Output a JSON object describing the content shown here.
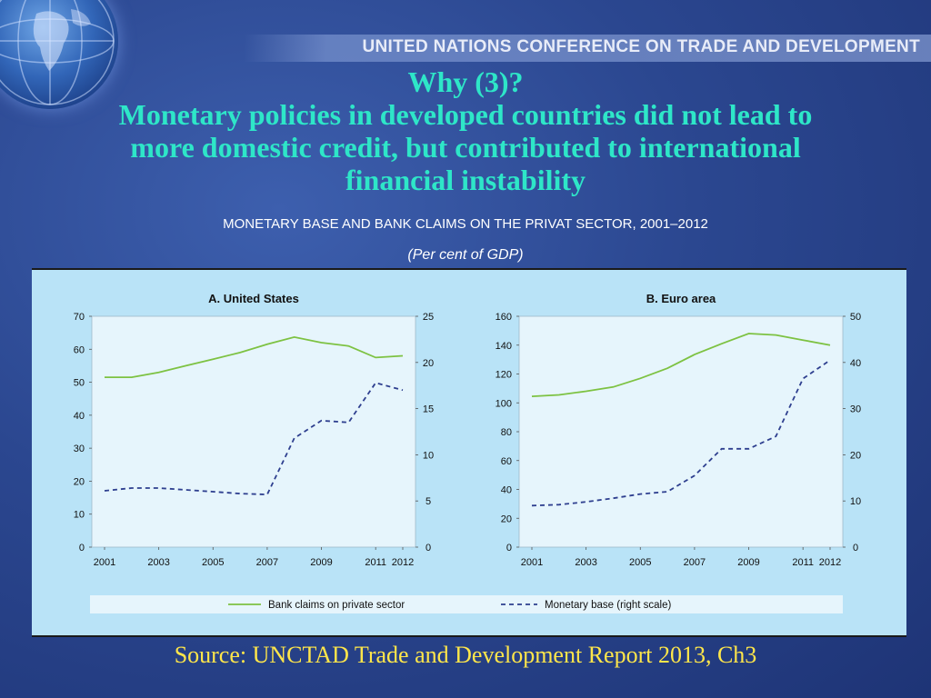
{
  "header": {
    "organization": "UNITED NATIONS CONFERENCE ON TRADE AND DEVELOPMENT",
    "title_line1": "Why (3)?",
    "title_line2": "Monetary policies in developed countries did not lead to",
    "title_line3": "more domestic credit, but contributed to international",
    "title_line4": "financial instability"
  },
  "figure": {
    "subtitle": "MONETARY BASE AND BANK CLAIMS ON THE PRIVAT SECTOR, 2001–2012",
    "units": "(Per cent of GDP)"
  },
  "footer": {
    "source": "Source: UNCTAD Trade and Development Report 2013, Ch3"
  },
  "colors": {
    "bank_claims": "#7dc242",
    "monetary_base": "#2e3f8f",
    "plot_bg": "#e6f5fc",
    "panel_bg": "#b9e3f7"
  },
  "chart_data": [
    {
      "type": "line",
      "title": "A. United States",
      "x": [
        2001,
        2002,
        2003,
        2004,
        2005,
        2006,
        2007,
        2008,
        2009,
        2010,
        2011,
        2012
      ],
      "xticks": [
        "2001",
        "2003",
        "2005",
        "2007",
        "2009",
        "2011",
        "2012"
      ],
      "xtick_values": [
        2001,
        2003,
        2005,
        2007,
        2009,
        2011,
        2012
      ],
      "ylim_left": [
        0,
        70
      ],
      "yticks_left": [
        0,
        10,
        20,
        30,
        40,
        50,
        60,
        70
      ],
      "ylim_right": [
        0,
        25
      ],
      "yticks_right": [
        0,
        5,
        10,
        15,
        20,
        25
      ],
      "series": [
        {
          "name": "Bank claims on private sector",
          "axis": "left",
          "style": "solid",
          "values": [
            51.5,
            51.5,
            53,
            55,
            57,
            59,
            61.5,
            63.7,
            62,
            61,
            57.5,
            58
          ]
        },
        {
          "name": "Monetary base (right scale)",
          "axis": "right",
          "style": "dashed",
          "values": [
            6.1,
            6.4,
            6.4,
            6.2,
            6.0,
            5.8,
            5.7,
            11.8,
            13.7,
            13.5,
            17.8,
            17.0
          ]
        }
      ],
      "grid": false
    },
    {
      "type": "line",
      "title": "B. Euro area",
      "x": [
        2001,
        2002,
        2003,
        2004,
        2005,
        2006,
        2007,
        2008,
        2009,
        2010,
        2011,
        2012
      ],
      "xticks": [
        "2001",
        "2003",
        "2005",
        "2007",
        "2009",
        "2011",
        "2012"
      ],
      "xtick_values": [
        2001,
        2003,
        2005,
        2007,
        2009,
        2011,
        2012
      ],
      "ylim_left": [
        0,
        160
      ],
      "yticks_left": [
        0,
        20,
        40,
        60,
        80,
        100,
        120,
        140,
        160
      ],
      "ylim_right": [
        0,
        50
      ],
      "yticks_right": [
        0,
        10,
        20,
        30,
        40,
        50
      ],
      "series": [
        {
          "name": "Bank claims on private sector",
          "axis": "left",
          "style": "solid",
          "values": [
            104.5,
            105.5,
            108,
            111,
            117,
            124,
            133.5,
            141,
            148,
            147,
            143.5,
            140
          ]
        },
        {
          "name": "Monetary base (right scale)",
          "axis": "right",
          "style": "dashed",
          "values": [
            9,
            9.2,
            9.8,
            10.6,
            11.5,
            12,
            15.5,
            21.3,
            21.3,
            24,
            36.5,
            40.5
          ]
        }
      ],
      "grid": false
    }
  ],
  "legend": {
    "bank_claims": "Bank claims on private sector",
    "monetary_base": "Monetary base (right scale)",
    "placement": "bottom"
  }
}
